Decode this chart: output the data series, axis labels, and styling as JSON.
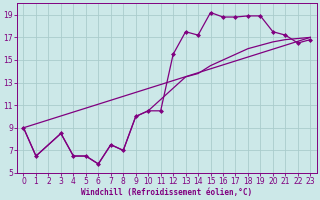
{
  "xlabel": "Windchill (Refroidissement éolien,°C)",
  "x_data": [
    0,
    1,
    2,
    3,
    4,
    5,
    6,
    7,
    8,
    9,
    10,
    11,
    12,
    13,
    14,
    15,
    16,
    17,
    18,
    19,
    20,
    21,
    22,
    23
  ],
  "line1_y": [
    9.0,
    6.5,
    null,
    8.5,
    6.5,
    6.5,
    5.8,
    7.5,
    7.0,
    10.0,
    10.5,
    10.5,
    15.5,
    17.5,
    17.2,
    19.2,
    18.8,
    18.8,
    18.9,
    18.9,
    17.5,
    17.2,
    16.5,
    16.8
  ],
  "line2_x": [
    0,
    1,
    3,
    4,
    5,
    6,
    7,
    8,
    9,
    10,
    11,
    12,
    13,
    14,
    15,
    16,
    17,
    18,
    19,
    20,
    21,
    22,
    23
  ],
  "line2_y": [
    9.0,
    6.5,
    8.5,
    6.5,
    6.5,
    5.8,
    7.5,
    7.0,
    10.0,
    10.5,
    11.5,
    12.5,
    13.5,
    13.8,
    14.5,
    15.0,
    15.5,
    16.0,
    16.3,
    16.6,
    16.8,
    16.9,
    17.0
  ],
  "line3_x": [
    0,
    23
  ],
  "line3_y": [
    9.0,
    17.0
  ],
  "xlim": [
    -0.5,
    23.5
  ],
  "ylim": [
    5,
    20
  ],
  "yticks": [
    5,
    7,
    9,
    11,
    13,
    15,
    17,
    19
  ],
  "xticks": [
    0,
    1,
    2,
    3,
    4,
    5,
    6,
    7,
    8,
    9,
    10,
    11,
    12,
    13,
    14,
    15,
    16,
    17,
    18,
    19,
    20,
    21,
    22,
    23
  ],
  "line_color": "#800080",
  "bg_color": "#cce8e8",
  "grid_color": "#aacccc",
  "axis_color": "#800080",
  "marker": "D",
  "marker_size": 2.0,
  "line_width": 0.9,
  "tick_fontsize": 5.5,
  "xlabel_fontsize": 5.5
}
